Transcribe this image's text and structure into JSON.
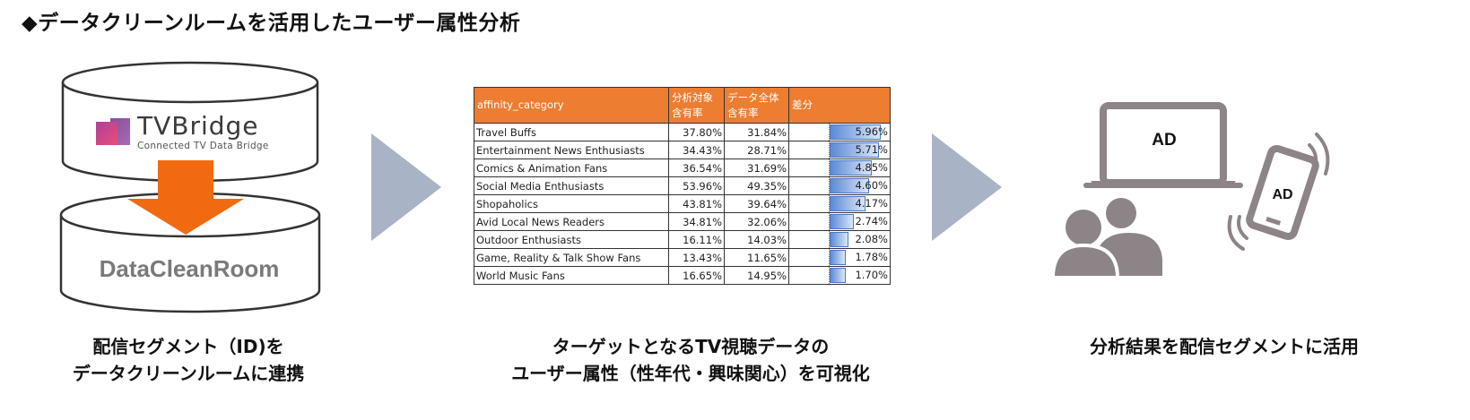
{
  "title": "◆データクリーンルームを活用したユーザー属性分析",
  "left_panel": {
    "logo_brand": "TVBridge",
    "logo_subtitle": "Connected TV Data Bridge",
    "db_label": "DataCleanRoom",
    "caption_line1": "配信セグメント（ID)を",
    "caption_line2": "データクリーンルームに連携"
  },
  "middle_panel": {
    "caption_line1": "ターゲットとなるTV視聴データの",
    "caption_line2": "ユーザー属性（性年代・興味関心）を可視化",
    "table": {
      "headers": [
        "affinity_category",
        "分析対象\n含有率",
        "データ全体\n含有率",
        "差分"
      ],
      "rows": [
        {
          "category": "Travel Buffs",
          "target": "37.80%",
          "overall": "31.84%",
          "diff": "5.96%",
          "diff_value": 5.96
        },
        {
          "category": "Entertainment News Enthusiasts",
          "target": "34.43%",
          "overall": "28.71%",
          "diff": "5.71%",
          "diff_value": 5.71
        },
        {
          "category": "Comics & Animation Fans",
          "target": "36.54%",
          "overall": "31.69%",
          "diff": "4.85%",
          "diff_value": 4.85
        },
        {
          "category": "Social Media Enthusiasts",
          "target": "53.96%",
          "overall": "49.35%",
          "diff": "4.60%",
          "diff_value": 4.6
        },
        {
          "category": "Shopaholics",
          "target": "43.81%",
          "overall": "39.64%",
          "diff": "4.17%",
          "diff_value": 4.17
        },
        {
          "category": "Avid Local News Readers",
          "target": "34.81%",
          "overall": "32.06%",
          "diff": "2.74%",
          "diff_value": 2.74
        },
        {
          "category": "Outdoor Enthusiasts",
          "target": "16.11%",
          "overall": "14.03%",
          "diff": "2.08%",
          "diff_value": 2.08
        },
        {
          "category": "Game, Reality & Talk Show Fans",
          "target": "13.43%",
          "overall": "11.65%",
          "diff": "1.78%",
          "diff_value": 1.78
        },
        {
          "category": "World Music Fans",
          "target": "16.65%",
          "overall": "14.95%",
          "diff": "1.70%",
          "diff_value": 1.7
        }
      ]
    }
  },
  "right_panel": {
    "laptop_label": "AD",
    "phone_label": "AD",
    "caption": "分析結果を配信セグメントに活用"
  },
  "colors": {
    "header_orange": "#ed7d31",
    "arrow_orange": "#f26a10",
    "chevron_gray": "#a9b3c6",
    "icon_gray": "#8c8486",
    "bar_blue": "#5b8ad6"
  }
}
